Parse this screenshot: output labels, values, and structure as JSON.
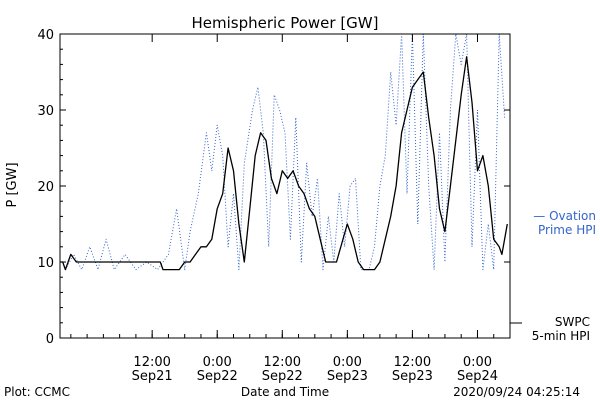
{
  "chart_data": {
    "type": "line",
    "title": "Hemispheric Power [GW]",
    "ylabel": "P [GW]",
    "xlabel": "Date and Time",
    "ylim": [
      0,
      40
    ],
    "y_ticks": [
      0,
      10,
      20,
      30,
      40
    ],
    "xlim": [
      "2020-09-20T19:00",
      "2020-09-24T06:00"
    ],
    "x_ticks": [
      {
        "time": "2020-09-21T12:00",
        "line1": "12:00",
        "line2": "Sep21"
      },
      {
        "time": "2020-09-22T00:00",
        "line1": "0:00",
        "line2": "Sep22"
      },
      {
        "time": "2020-09-22T12:00",
        "line1": "12:00",
        "line2": "Sep22"
      },
      {
        "time": "2020-09-23T00:00",
        "line1": "0:00",
        "line2": "Sep23"
      },
      {
        "time": "2020-09-23T12:00",
        "line1": "12:00",
        "line2": "Sep23"
      },
      {
        "time": "2020-09-24T00:00",
        "line1": "0:00",
        "line2": "Sep24"
      }
    ],
    "grid": false,
    "series": [
      {
        "name": "Ovation Prime HPI",
        "legend_lines": [
          "— Ovation",
          "Prime HPI"
        ],
        "color": "#3366cc",
        "style": "dotted",
        "points": [
          [
            "2020-09-20T20:00",
            9
          ],
          [
            "2020-09-20T21:30",
            11
          ],
          [
            "2020-09-20T23:00",
            9
          ],
          [
            "2020-09-21T00:30",
            12
          ],
          [
            "2020-09-21T02:00",
            9
          ],
          [
            "2020-09-21T03:30",
            13
          ],
          [
            "2020-09-21T05:00",
            9
          ],
          [
            "2020-09-21T07:00",
            11
          ],
          [
            "2020-09-21T09:00",
            9
          ],
          [
            "2020-09-21T11:00",
            10
          ],
          [
            "2020-09-21T13:00",
            9
          ],
          [
            "2020-09-21T15:00",
            11
          ],
          [
            "2020-09-21T16:30",
            17
          ],
          [
            "2020-09-21T18:00",
            9
          ],
          [
            "2020-09-21T19:00",
            14
          ],
          [
            "2020-09-21T20:30",
            19
          ],
          [
            "2020-09-21T22:00",
            27
          ],
          [
            "2020-09-21T23:00",
            22
          ],
          [
            "2020-09-22T00:00",
            28
          ],
          [
            "2020-09-22T01:00",
            24
          ],
          [
            "2020-09-22T02:00",
            12
          ],
          [
            "2020-09-22T03:00",
            19
          ],
          [
            "2020-09-22T04:00",
            9
          ],
          [
            "2020-09-22T05:00",
            23
          ],
          [
            "2020-09-22T06:30",
            30
          ],
          [
            "2020-09-22T07:30",
            33
          ],
          [
            "2020-09-22T08:30",
            27
          ],
          [
            "2020-09-22T09:30",
            12
          ],
          [
            "2020-09-22T10:30",
            32
          ],
          [
            "2020-09-22T11:30",
            30
          ],
          [
            "2020-09-22T12:30",
            27
          ],
          [
            "2020-09-22T13:30",
            13
          ],
          [
            "2020-09-22T14:30",
            29
          ],
          [
            "2020-09-22T15:30",
            10
          ],
          [
            "2020-09-22T16:30",
            23
          ],
          [
            "2020-09-22T17:30",
            16
          ],
          [
            "2020-09-22T18:30",
            21
          ],
          [
            "2020-09-22T19:30",
            9
          ],
          [
            "2020-09-22T20:30",
            16
          ],
          [
            "2020-09-22T21:30",
            10
          ],
          [
            "2020-09-22T22:30",
            19
          ],
          [
            "2020-09-22T23:30",
            12
          ],
          [
            "2020-09-23T00:30",
            20
          ],
          [
            "2020-09-23T01:30",
            21
          ],
          [
            "2020-09-23T02:30",
            9
          ],
          [
            "2020-09-23T04:00",
            9
          ],
          [
            "2020-09-23T05:00",
            12
          ],
          [
            "2020-09-23T06:00",
            20
          ],
          [
            "2020-09-23T07:00",
            24
          ],
          [
            "2020-09-23T08:00",
            35
          ],
          [
            "2020-09-23T09:00",
            28
          ],
          [
            "2020-09-23T10:00",
            40
          ],
          [
            "2020-09-23T11:00",
            19
          ],
          [
            "2020-09-23T12:00",
            40
          ],
          [
            "2020-09-23T13:00",
            15
          ],
          [
            "2020-09-23T14:00",
            40
          ],
          [
            "2020-09-23T15:00",
            20
          ],
          [
            "2020-09-23T16:00",
            9
          ],
          [
            "2020-09-23T17:00",
            27
          ],
          [
            "2020-09-23T18:00",
            10
          ],
          [
            "2020-09-23T19:00",
            30
          ],
          [
            "2020-09-23T20:00",
            40
          ],
          [
            "2020-09-23T21:00",
            36
          ],
          [
            "2020-09-23T22:00",
            40
          ],
          [
            "2020-09-23T23:00",
            12
          ],
          [
            "2020-09-24T00:00",
            30
          ],
          [
            "2020-09-24T01:00",
            9
          ],
          [
            "2020-09-24T02:00",
            15
          ],
          [
            "2020-09-24T03:00",
            9
          ],
          [
            "2020-09-24T04:00",
            40
          ],
          [
            "2020-09-24T05:00",
            29
          ]
        ]
      },
      {
        "name": "SWPC 5-min HPI",
        "legend_lines": [
          "SWPC",
          "5-min HPI"
        ],
        "color": "#000000",
        "style": "solid",
        "points": [
          [
            "2020-09-20T19:00",
            10
          ],
          [
            "2020-09-20T19:30",
            10
          ],
          [
            "2020-09-20T20:00",
            9
          ],
          [
            "2020-09-20T21:00",
            11
          ],
          [
            "2020-09-20T22:00",
            10
          ],
          [
            "2020-09-21T00:00",
            10
          ],
          [
            "2020-09-21T06:00",
            10
          ],
          [
            "2020-09-21T12:00",
            10
          ],
          [
            "2020-09-21T13:30",
            10
          ],
          [
            "2020-09-21T14:00",
            9
          ],
          [
            "2020-09-21T17:00",
            9
          ],
          [
            "2020-09-21T18:00",
            10
          ],
          [
            "2020-09-21T19:00",
            10
          ],
          [
            "2020-09-21T20:00",
            11
          ],
          [
            "2020-09-21T21:00",
            12
          ],
          [
            "2020-09-21T22:00",
            12
          ],
          [
            "2020-09-21T23:00",
            13
          ],
          [
            "2020-09-22T00:00",
            17
          ],
          [
            "2020-09-22T01:00",
            19
          ],
          [
            "2020-09-22T02:00",
            25
          ],
          [
            "2020-09-22T03:00",
            22
          ],
          [
            "2020-09-22T04:00",
            15
          ],
          [
            "2020-09-22T05:00",
            10
          ],
          [
            "2020-09-22T06:00",
            17
          ],
          [
            "2020-09-22T07:00",
            24
          ],
          [
            "2020-09-22T08:00",
            27
          ],
          [
            "2020-09-22T09:00",
            26
          ],
          [
            "2020-09-22T10:00",
            21
          ],
          [
            "2020-09-22T11:00",
            19
          ],
          [
            "2020-09-22T12:00",
            22
          ],
          [
            "2020-09-22T13:00",
            21
          ],
          [
            "2020-09-22T14:00",
            22
          ],
          [
            "2020-09-22T15:00",
            20
          ],
          [
            "2020-09-22T16:00",
            19
          ],
          [
            "2020-09-22T17:00",
            17
          ],
          [
            "2020-09-22T18:00",
            16
          ],
          [
            "2020-09-22T19:00",
            13
          ],
          [
            "2020-09-22T20:00",
            10
          ],
          [
            "2020-09-22T22:00",
            10
          ],
          [
            "2020-09-23T00:00",
            15
          ],
          [
            "2020-09-23T01:00",
            13
          ],
          [
            "2020-09-23T02:00",
            10
          ],
          [
            "2020-09-23T03:00",
            9
          ],
          [
            "2020-09-23T05:00",
            9
          ],
          [
            "2020-09-23T06:00",
            10
          ],
          [
            "2020-09-23T07:00",
            13
          ],
          [
            "2020-09-23T08:00",
            16
          ],
          [
            "2020-09-23T09:00",
            20
          ],
          [
            "2020-09-23T10:00",
            27
          ],
          [
            "2020-09-23T11:00",
            30
          ],
          [
            "2020-09-23T12:00",
            33
          ],
          [
            "2020-09-23T13:00",
            34
          ],
          [
            "2020-09-23T14:00",
            35
          ],
          [
            "2020-09-23T15:00",
            29
          ],
          [
            "2020-09-23T16:00",
            24
          ],
          [
            "2020-09-23T17:00",
            17
          ],
          [
            "2020-09-23T18:00",
            14
          ],
          [
            "2020-09-23T19:00",
            20
          ],
          [
            "2020-09-23T20:00",
            26
          ],
          [
            "2020-09-23T21:00",
            32
          ],
          [
            "2020-09-23T22:00",
            37
          ],
          [
            "2020-09-23T23:00",
            31
          ],
          [
            "2020-09-24T00:00",
            22
          ],
          [
            "2020-09-24T01:00",
            24
          ],
          [
            "2020-09-24T02:00",
            20
          ],
          [
            "2020-09-24T03:00",
            13
          ],
          [
            "2020-09-24T04:00",
            12
          ],
          [
            "2020-09-24T04:30",
            11
          ],
          [
            "2020-09-24T05:00",
            13
          ],
          [
            "2020-09-24T05:30",
            15
          ]
        ]
      }
    ]
  },
  "footer": {
    "plot_credit": "Plot: CCMC",
    "xlabel": "Date and Time",
    "timestamp": "2020/09/24 04:25:14"
  }
}
